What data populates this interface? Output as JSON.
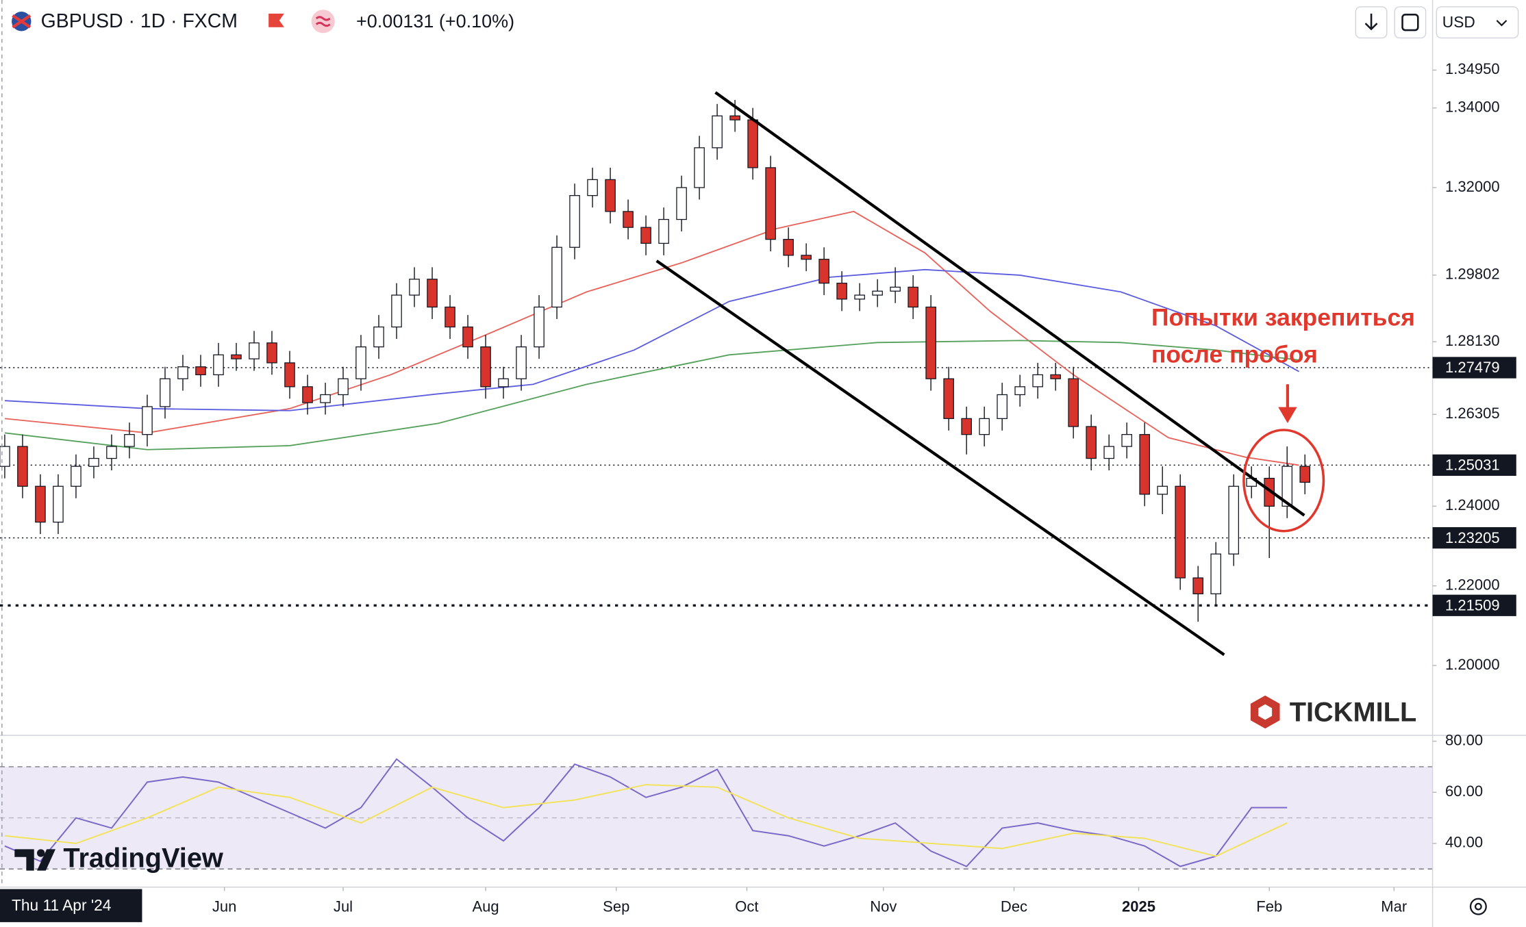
{
  "header": {
    "symbol": "GBPUSD · 1D · FXCM",
    "change": "+0.00131 (+0.10%)",
    "currency": "USD"
  },
  "chart_data": {
    "type": "candlestick",
    "x": [
      0,
      3,
      6,
      9,
      12,
      15,
      18,
      21,
      24,
      27,
      30,
      33,
      36,
      39,
      42,
      45,
      48,
      51,
      54,
      57,
      60,
      63,
      66,
      69,
      72,
      75,
      78,
      81,
      84,
      87,
      90,
      93,
      96,
      99,
      102,
      105,
      108,
      111,
      114,
      117,
      120,
      123,
      126,
      129,
      132,
      135,
      138,
      141,
      144,
      147,
      150,
      153,
      156,
      159,
      162,
      165,
      168,
      171,
      174,
      177,
      180,
      183,
      186,
      189,
      192,
      195,
      198,
      201,
      204,
      207,
      210,
      213,
      216,
      219
    ],
    "open": [
      1.25,
      1.255,
      1.245,
      1.236,
      1.245,
      1.25,
      1.252,
      1.255,
      1.258,
      1.265,
      1.272,
      1.275,
      1.273,
      1.278,
      1.277,
      1.281,
      1.276,
      1.27,
      1.266,
      1.268,
      1.272,
      1.28,
      1.285,
      1.293,
      1.297,
      1.29,
      1.285,
      1.28,
      1.27,
      1.272,
      1.28,
      1.29,
      1.305,
      1.318,
      1.322,
      1.314,
      1.31,
      1.306,
      1.312,
      1.32,
      1.33,
      1.338,
      1.337,
      1.325,
      1.307,
      1.303,
      1.302,
      1.296,
      1.292,
      1.293,
      1.294,
      1.295,
      1.29,
      1.272,
      1.262,
      1.258,
      1.262,
      1.268,
      1.27,
      1.273,
      1.272,
      1.26,
      1.252,
      1.255,
      1.258,
      1.243,
      1.245,
      1.222,
      1.218,
      1.228,
      1.245,
      1.247,
      1.24,
      1.25
    ],
    "high": [
      1.258,
      1.258,
      1.248,
      1.248,
      1.253,
      1.255,
      1.258,
      1.261,
      1.268,
      1.275,
      1.278,
      1.278,
      1.281,
      1.281,
      1.284,
      1.284,
      1.279,
      1.273,
      1.271,
      1.275,
      1.283,
      1.288,
      1.296,
      1.3,
      1.3,
      1.293,
      1.288,
      1.283,
      1.275,
      1.283,
      1.293,
      1.308,
      1.321,
      1.325,
      1.325,
      1.317,
      1.313,
      1.315,
      1.323,
      1.333,
      1.341,
      1.342,
      1.34,
      1.328,
      1.31,
      1.306,
      1.305,
      1.299,
      1.296,
      1.297,
      1.3,
      1.298,
      1.293,
      1.275,
      1.265,
      1.265,
      1.271,
      1.273,
      1.276,
      1.276,
      1.275,
      1.263,
      1.258,
      1.261,
      1.261,
      1.25,
      1.248,
      1.225,
      1.231,
      1.248,
      1.25,
      1.25,
      1.255,
      1.253
    ],
    "low": [
      1.247,
      1.242,
      1.233,
      1.233,
      1.242,
      1.247,
      1.249,
      1.252,
      1.255,
      1.262,
      1.269,
      1.27,
      1.27,
      1.274,
      1.274,
      1.273,
      1.267,
      1.263,
      1.263,
      1.265,
      1.269,
      1.277,
      1.282,
      1.29,
      1.287,
      1.282,
      1.277,
      1.267,
      1.267,
      1.269,
      1.277,
      1.287,
      1.302,
      1.315,
      1.311,
      1.307,
      1.303,
      1.303,
      1.309,
      1.317,
      1.327,
      1.334,
      1.322,
      1.304,
      1.3,
      1.299,
      1.293,
      1.289,
      1.289,
      1.29,
      1.291,
      1.287,
      1.269,
      1.259,
      1.253,
      1.255,
      1.259,
      1.265,
      1.267,
      1.269,
      1.257,
      1.249,
      1.249,
      1.252,
      1.24,
      1.238,
      1.219,
      1.211,
      1.215,
      1.225,
      1.242,
      1.227,
      1.237,
      1.243
    ],
    "close": [
      1.255,
      1.245,
      1.236,
      1.245,
      1.25,
      1.252,
      1.255,
      1.258,
      1.265,
      1.272,
      1.275,
      1.273,
      1.278,
      1.277,
      1.281,
      1.276,
      1.27,
      1.266,
      1.268,
      1.272,
      1.28,
      1.285,
      1.293,
      1.297,
      1.29,
      1.285,
      1.28,
      1.27,
      1.272,
      1.28,
      1.29,
      1.305,
      1.318,
      1.322,
      1.314,
      1.31,
      1.306,
      1.312,
      1.32,
      1.33,
      1.338,
      1.337,
      1.325,
      1.307,
      1.303,
      1.302,
      1.296,
      1.292,
      1.293,
      1.294,
      1.295,
      1.29,
      1.272,
      1.262,
      1.258,
      1.262,
      1.268,
      1.27,
      1.273,
      1.272,
      1.26,
      1.252,
      1.255,
      1.258,
      1.243,
      1.245,
      1.222,
      1.218,
      1.228,
      1.245,
      1.247,
      1.24,
      1.25,
      1.246
    ],
    "up_color": "#ffffff",
    "down_color": "#d8342c",
    "xlim": [
      -0.8,
      240.5
    ],
    "xticks": [
      {
        "value": 37,
        "label": "Jun"
      },
      {
        "value": 57,
        "label": "Jul"
      },
      {
        "value": 81,
        "label": "Aug"
      },
      {
        "value": 103,
        "label": "Sep"
      },
      {
        "value": 125,
        "label": "Oct"
      },
      {
        "value": 148,
        "label": "Nov"
      },
      {
        "value": 170,
        "label": "Dec"
      },
      {
        "value": 191,
        "label": "2025",
        "bold": true
      },
      {
        "value": 213,
        "label": "Feb"
      },
      {
        "value": 234,
        "label": "Mar"
      }
    ],
    "ylim": [
      1.1827,
      1.3671
    ],
    "yticks": [
      {
        "value": 1.3495,
        "label": "1.34950"
      },
      {
        "value": 1.34,
        "label": "1.34000"
      },
      {
        "value": 1.32,
        "label": "1.32000"
      },
      {
        "value": 1.29802,
        "label": "1.29802"
      },
      {
        "value": 1.2813,
        "label": "1.28130"
      },
      {
        "value": 1.26305,
        "label": "1.26305"
      },
      {
        "value": 1.24,
        "label": "1.24000"
      },
      {
        "value": 1.22,
        "label": "1.22000"
      },
      {
        "value": 1.2,
        "label": "1.20000"
      }
    ],
    "levels": [
      {
        "value": 1.27479,
        "label": "1.27479"
      },
      {
        "value": 1.25031,
        "label": "1.25031"
      },
      {
        "value": 1.23205,
        "label": "1.23205"
      },
      {
        "value": 1.21509,
        "label": "1.21509"
      }
    ],
    "moving_averages": [
      {
        "color": "#e8625a",
        "x": [
          0,
          24,
          48,
          65,
          81,
          98,
          114,
          130,
          143,
          155,
          166,
          180,
          196,
          209,
          218
        ],
        "values": [
          1.262,
          1.2584,
          1.2645,
          1.273,
          1.283,
          1.2938,
          1.3011,
          1.3097,
          1.314,
          1.3036,
          1.2889,
          1.273,
          1.2572,
          1.2523,
          1.2503
        ]
      },
      {
        "color": "#5b5ce0",
        "x": [
          0,
          24,
          48,
          73,
          89,
          106,
          122,
          139,
          155,
          171,
          188,
          204,
          218
        ],
        "values": [
          1.2665,
          1.2645,
          1.264,
          1.2682,
          1.2706,
          1.2792,
          1.2914,
          1.2975,
          1.2994,
          1.298,
          1.2938,
          1.2853,
          1.2738
        ]
      },
      {
        "color": "#55a05a",
        "x": [
          0,
          24,
          48,
          73,
          98,
          122,
          147,
          171,
          188,
          204,
          218
        ],
        "values": [
          1.2584,
          1.2542,
          1.2552,
          1.2608,
          1.2706,
          1.278,
          1.2811,
          1.2816,
          1.2811,
          1.2792,
          1.2767
        ]
      }
    ],
    "trendlines": [
      {
        "x": [
          119.7,
          218.9
        ],
        "values": [
          1.3439,
          1.2377
        ]
      },
      {
        "x": [
          109.8,
          205.4
        ],
        "values": [
          1.3016,
          1.2027
        ]
      }
    ],
    "annotation": [
      "Попытки закрепиться",
      "после пробоя"
    ],
    "crosshair_label": "Thu 11 Apr '24"
  },
  "rsi": {
    "type": "line",
    "ylim": [
      22.9,
      81.9
    ],
    "yticks": [
      {
        "value": 80,
        "label": "80.00"
      },
      {
        "value": 60,
        "label": "60.00"
      },
      {
        "value": 40,
        "label": "40.00"
      }
    ],
    "band": [
      30,
      70
    ],
    "midline": 50,
    "series": [
      {
        "color": "#7b68c8",
        "x": [
          0,
          6,
          12,
          18,
          24,
          30,
          36,
          42,
          48,
          54,
          60,
          66,
          72,
          78,
          84,
          90,
          96,
          102,
          108,
          114,
          120,
          126,
          132,
          138,
          144,
          150,
          156,
          162,
          168,
          174,
          180,
          186,
          192,
          198,
          204,
          210,
          216
        ],
        "values": [
          39,
          33,
          50,
          46,
          64,
          66,
          64,
          58,
          52,
          46,
          54,
          73,
          62,
          50,
          41,
          54,
          71,
          66,
          58,
          62,
          69,
          45,
          43,
          39,
          43,
          48,
          37,
          31,
          46,
          48,
          45,
          43,
          39,
          31,
          35,
          54,
          54
        ]
      },
      {
        "color": "#f2e35c",
        "x": [
          0,
          12,
          24,
          36,
          48,
          60,
          72,
          84,
          96,
          108,
          120,
          132,
          144,
          156,
          168,
          180,
          192,
          204,
          216
        ],
        "values": [
          43,
          40,
          50,
          62,
          58,
          48,
          62,
          54,
          57,
          63,
          62,
          50,
          42,
          40,
          38,
          44,
          42,
          35,
          48
        ]
      }
    ]
  },
  "watermarks": [
    "TradingView",
    "TICKMILL"
  ]
}
